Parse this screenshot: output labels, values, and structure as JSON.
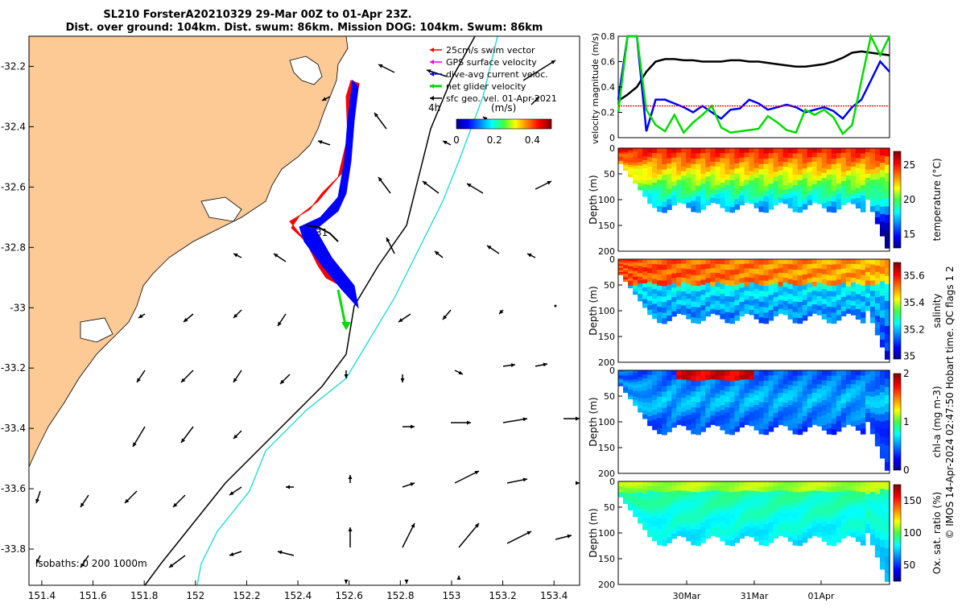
{
  "title": {
    "line1": "SL210 ForsterA20210329 29-Mar 00Z to 01-Apr 23Z.",
    "line2": "Dist. over ground: 104km. Dist. swum: 86km. Mission DOG: 104km. Swum: 86km"
  },
  "map": {
    "lon_ticks": [
      "151.4",
      "151.6",
      "151.8",
      "152",
      "152.2",
      "152.4",
      "152.6",
      "152.8",
      "153",
      "153.2",
      "153.4"
    ],
    "lat_ticks": [
      "-32.2",
      "-32.4",
      "-32.6",
      "-32.8",
      "-33",
      "-33.2",
      "-33.4",
      "-33.6",
      "-33.8"
    ],
    "xlim": [
      151.35,
      153.5
    ],
    "ylim": [
      -33.92,
      -32.1
    ],
    "legend": [
      {
        "label": "25cm/s swim vector",
        "color": "#ff0000"
      },
      {
        "label": "GPS surface velocity",
        "color": "#ff00ff"
      },
      {
        "label": "dive-avg current veloc.",
        "color": "#0000ff"
      },
      {
        "label": "net glider velocity",
        "color": "#00dd00"
      },
      {
        "label": "sfc geo. vel. 01-Apr-2021",
        "color": "#000000"
      }
    ],
    "colorbar": {
      "unit": "(m/s)",
      "ticks": [
        "0",
        "0.2",
        "0.4"
      ],
      "time_label": "4h"
    },
    "point_label": "31",
    "isobath_label": "isobaths: 0   200  1000m",
    "colors": {
      "land": "#fdc995",
      "glider_track": "#0000ff",
      "swim": "#ff0000",
      "net": "#00dd00",
      "isobath_200": "#000000",
      "isobath_1000": "#33dddd"
    }
  },
  "velocity_panel": {
    "ylabel": "velocity magnitude (m/s)",
    "yticks": [
      "0",
      "0.2",
      "0.4",
      "0.6",
      "0.8"
    ],
    "ylim": [
      0,
      0.8
    ],
    "series": [
      {
        "color": "#000000",
        "values": [
          0.29,
          0.34,
          0.4,
          0.52,
          0.6,
          0.62,
          0.62,
          0.61,
          0.61,
          0.6,
          0.6,
          0.6,
          0.61,
          0.61,
          0.6,
          0.6,
          0.59,
          0.58,
          0.57,
          0.56,
          0.56,
          0.57,
          0.58,
          0.6,
          0.63,
          0.67,
          0.68,
          0.67,
          0.66,
          0.65
        ]
      },
      {
        "color": "#0000ff",
        "values": [
          0.3,
          0.8,
          0.8,
          0.05,
          0.3,
          0.3,
          0.27,
          0.24,
          0.2,
          0.25,
          0.2,
          0.15,
          0.22,
          0.23,
          0.3,
          0.27,
          0.22,
          0.24,
          0.26,
          0.24,
          0.2,
          0.22,
          0.24,
          0.21,
          0.15,
          0.24,
          0.3,
          0.45,
          0.6,
          0.52
        ]
      },
      {
        "color": "#00dd00",
        "values": [
          0.2,
          0.8,
          0.8,
          0.22,
          0.1,
          0.05,
          0.18,
          0.04,
          0.12,
          0.18,
          0.25,
          0.08,
          0.04,
          0.05,
          0.06,
          0.07,
          0.17,
          0.12,
          0.06,
          0.04,
          0.22,
          0.18,
          0.22,
          0.16,
          0.03,
          0.1,
          0.45,
          0.8,
          0.65,
          0.8
        ]
      },
      {
        "color": "#ff0000",
        "values": [
          0.25,
          0.25,
          0.25,
          0.25,
          0.25,
          0.25,
          0.25,
          0.25,
          0.25,
          0.25,
          0.25,
          0.25,
          0.25,
          0.25,
          0.25,
          0.25,
          0.25,
          0.25,
          0.25,
          0.25,
          0.25,
          0.25,
          0.25,
          0.25,
          0.25,
          0.25,
          0.25,
          0.25,
          0.25,
          0.25
        ]
      }
    ]
  },
  "depth_panels": [
    {
      "id": "temperature",
      "ylabel": "Depth (m)",
      "clabel": "temperature (°C)",
      "cticks": [
        "15",
        "20",
        "25"
      ],
      "cvals": [
        15,
        20,
        25
      ],
      "crange": [
        13,
        27
      ],
      "scheme": "jet"
    },
    {
      "id": "salinity",
      "ylabel": "Depth (m)",
      "clabel": "salinity",
      "cticks": [
        "35",
        "35.2",
        "35.4",
        "35.6"
      ],
      "cvals": [
        35,
        35.2,
        35.4,
        35.6
      ],
      "crange": [
        34.98,
        35.7
      ],
      "scheme": "jet"
    },
    {
      "id": "chla",
      "ylabel": "Depth (m)",
      "clabel": "chl-a (mg m-3)",
      "cticks": [
        "0",
        "1",
        "2"
      ],
      "cvals": [
        0,
        1,
        2
      ],
      "crange": [
        0,
        2
      ],
      "scheme": "jet"
    },
    {
      "id": "oxygen",
      "ylabel": "Depth (m)",
      "clabel": "Ox. sat. ratio (%)",
      "cticks": [
        "50",
        "100",
        "150"
      ],
      "cvals": [
        50,
        100,
        150
      ],
      "crange": [
        25,
        175
      ],
      "scheme": "jet"
    }
  ],
  "depth_yticks": [
    "0",
    "50",
    "100",
    "150",
    "200"
  ],
  "time_ticks": [
    "30Mar",
    "31Mar",
    "01Apr"
  ],
  "credit": "© IMOS 14-Apr-2024 02:47:50 Hobart time. QC flags 1  2"
}
